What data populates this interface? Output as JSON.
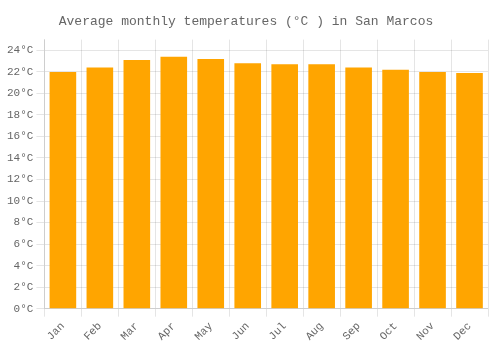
{
  "chart_data": {
    "type": "bar",
    "title": "Average monthly temperatures (°C ) in San Marcos",
    "categories": [
      "Jan",
      "Feb",
      "Mar",
      "Apr",
      "May",
      "Jun",
      "Jul",
      "Aug",
      "Sep",
      "Oct",
      "Nov",
      "Dec"
    ],
    "values": [
      22.0,
      22.4,
      23.1,
      23.4,
      23.2,
      22.8,
      22.7,
      22.7,
      22.4,
      22.2,
      22.0,
      21.9
    ],
    "color": "#FFA500",
    "ylim": [
      0,
      25
    ],
    "yticks": [
      {
        "value": 0,
        "label": "0°C"
      },
      {
        "value": 2,
        "label": "2°C"
      },
      {
        "value": 4,
        "label": "4°C"
      },
      {
        "value": 6,
        "label": "6°C"
      },
      {
        "value": 8,
        "label": "8°C"
      },
      {
        "value": 10,
        "label": "10°C"
      },
      {
        "value": 12,
        "label": "12°C"
      },
      {
        "value": 14,
        "label": "14°C"
      },
      {
        "value": 16,
        "label": "16°C"
      },
      {
        "value": 18,
        "label": "18°C"
      },
      {
        "value": 20,
        "label": "20°C"
      },
      {
        "value": 22,
        "label": "22°C"
      },
      {
        "value": 24,
        "label": "24°C"
      }
    ],
    "grid": true
  }
}
